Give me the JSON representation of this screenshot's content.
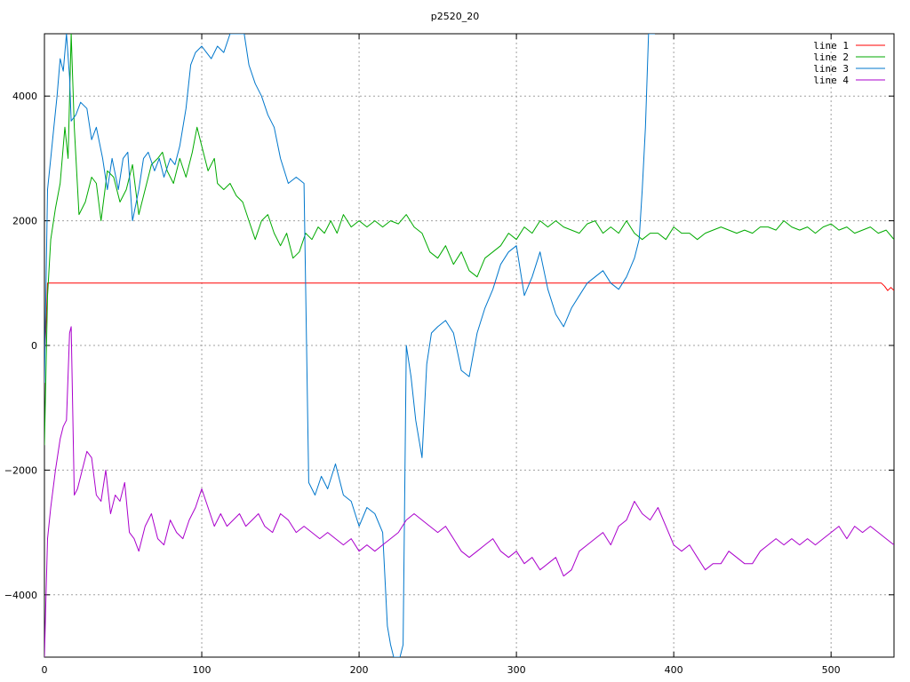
{
  "chart_data": {
    "type": "line",
    "title": "p2520_20",
    "xlabel": "",
    "ylabel": "",
    "xlim": [
      0,
      540
    ],
    "ylim": [
      -5000,
      5000
    ],
    "xticks": [
      0,
      100,
      200,
      300,
      400,
      500
    ],
    "yticks": [
      -4000,
      -2000,
      0,
      2000,
      4000
    ],
    "xtick_labels": [
      "0",
      "100",
      "200",
      "300",
      "400",
      "500"
    ],
    "ytick_labels": [
      "−4000",
      "−2000",
      "0",
      "2000",
      "4000"
    ],
    "grid": true,
    "legend_position": "top-right",
    "series": [
      {
        "name": "line 1",
        "color": "#ff0000",
        "x": [
          0,
          1,
          2,
          3,
          100,
          200,
          300,
          400,
          500,
          532,
          534,
          536,
          538,
          540
        ],
        "y": [
          -200,
          300,
          1000,
          1000,
          1000,
          1000,
          1000,
          1000,
          1000,
          1000,
          950,
          880,
          930,
          880
        ]
      },
      {
        "name": "line 2",
        "color": "#00aa00",
        "x": [
          0,
          2,
          4,
          7,
          10,
          13,
          15,
          17,
          19,
          22,
          26,
          30,
          33,
          36,
          40,
          44,
          48,
          52,
          56,
          60,
          64,
          68,
          72,
          75,
          78,
          82,
          86,
          90,
          94,
          97,
          100,
          104,
          108,
          110,
          114,
          118,
          122,
          126,
          130,
          134,
          138,
          142,
          146,
          150,
          154,
          158,
          162,
          166,
          170,
          174,
          178,
          182,
          186,
          190,
          195,
          200,
          205,
          210,
          215,
          220,
          225,
          230,
          235,
          240,
          245,
          250,
          255,
          260,
          265,
          270,
          275,
          280,
          285,
          290,
          295,
          300,
          305,
          310,
          315,
          320,
          325,
          330,
          335,
          340,
          345,
          350,
          355,
          360,
          365,
          370,
          375,
          380,
          385,
          390,
          395,
          400,
          405,
          410,
          415,
          420,
          425,
          430,
          435,
          440,
          445,
          450,
          455,
          460,
          465,
          470,
          475,
          480,
          485,
          490,
          495,
          500,
          505,
          510,
          515,
          520,
          525,
          530,
          535,
          540
        ],
        "y": [
          -1600,
          800,
          1700,
          2200,
          2600,
          3500,
          3000,
          5000,
          3500,
          2100,
          2300,
          2700,
          2600,
          2000,
          2800,
          2700,
          2300,
          2500,
          2900,
          2100,
          2500,
          2900,
          3000,
          3100,
          2800,
          2600,
          3000,
          2700,
          3100,
          3500,
          3200,
          2800,
          3000,
          2600,
          2500,
          2600,
          2400,
          2300,
          2000,
          1700,
          2000,
          2100,
          1800,
          1600,
          1800,
          1400,
          1500,
          1800,
          1700,
          1900,
          1800,
          2000,
          1800,
          2100,
          1900,
          2000,
          1900,
          2000,
          1900,
          2000,
          1950,
          2100,
          1900,
          1800,
          1500,
          1400,
          1600,
          1300,
          1500,
          1200,
          1100,
          1400,
          1500,
          1600,
          1800,
          1700,
          1900,
          1800,
          2000,
          1900,
          2000,
          1900,
          1850,
          1800,
          1950,
          2000,
          1800,
          1900,
          1800,
          2000,
          1800,
          1700,
          1800,
          1800,
          1700,
          1900,
          1800,
          1800,
          1700,
          1800,
          1850,
          1900,
          1850,
          1800,
          1850,
          1800,
          1900,
          1900,
          1850,
          2000,
          1900,
          1850,
          1900,
          1800,
          1900,
          1950,
          1850,
          1900,
          1800,
          1850,
          1900,
          1800,
          1850,
          1700
        ]
      },
      {
        "name": "line 3",
        "color": "#0077cc",
        "x": [
          0,
          2,
          4,
          6,
          8,
          10,
          12,
          14,
          16,
          17,
          20,
          23,
          27,
          30,
          33,
          37,
          40,
          43,
          47,
          50,
          53,
          56,
          60,
          63,
          66,
          70,
          73,
          76,
          80,
          83,
          86,
          90,
          93,
          96,
          100,
          103,
          106,
          110,
          114,
          118,
          122,
          126,
          127,
          130,
          134,
          138,
          142,
          146,
          150,
          155,
          160,
          165,
          168,
          172,
          176,
          180,
          185,
          190,
          195,
          200,
          205,
          210,
          215,
          218,
          220,
          222,
          224,
          226,
          228,
          230,
          233,
          236,
          240,
          243,
          246,
          250,
          255,
          260,
          265,
          270,
          275,
          280,
          285,
          290,
          295,
          300,
          305,
          310,
          315,
          320,
          325,
          330,
          335,
          340,
          345,
          350,
          355,
          360,
          365,
          370,
          375,
          378,
          380,
          382,
          384,
          386,
          388
        ],
        "y": [
          -600,
          2500,
          3000,
          3500,
          4000,
          4600,
          4400,
          5000,
          4300,
          3600,
          3700,
          3900,
          3800,
          3300,
          3500,
          3000,
          2500,
          3000,
          2500,
          3000,
          3100,
          2000,
          2500,
          3000,
          3100,
          2800,
          3000,
          2700,
          3000,
          2900,
          3200,
          3800,
          4500,
          4700,
          4800,
          4700,
          4600,
          4800,
          4700,
          5000,
          5000,
          5000,
          5000,
          4500,
          4200,
          4000,
          3700,
          3500,
          3000,
          2600,
          2700,
          2600,
          -2200,
          -2400,
          -2100,
          -2300,
          -1900,
          -2400,
          -2500,
          -2900,
          -2600,
          -2700,
          -3000,
          -4500,
          -4800,
          -5000,
          -5000,
          -5000,
          -4800,
          0,
          -500,
          -1200,
          -1800,
          -300,
          200,
          300,
          400,
          200,
          -400,
          -500,
          200,
          600,
          900,
          1300,
          1500,
          1600,
          800,
          1100,
          1500,
          900,
          500,
          300,
          600,
          800,
          1000,
          1100,
          1200,
          1000,
          900,
          1100,
          1400,
          1700,
          2500,
          3500,
          5000,
          5000,
          5000
        ]
      },
      {
        "name": "line 4",
        "color": "#aa00cc",
        "x": [
          0,
          1,
          2,
          4,
          7,
          10,
          12,
          14,
          16,
          17,
          19,
          21,
          24,
          27,
          30,
          33,
          36,
          39,
          42,
          45,
          48,
          51,
          54,
          57,
          60,
          64,
          68,
          72,
          76,
          80,
          84,
          88,
          92,
          96,
          100,
          104,
          108,
          112,
          116,
          120,
          124,
          128,
          132,
          136,
          140,
          145,
          150,
          155,
          160,
          165,
          170,
          175,
          180,
          185,
          190,
          195,
          200,
          205,
          210,
          215,
          220,
          225,
          230,
          235,
          240,
          245,
          250,
          255,
          260,
          265,
          270,
          275,
          280,
          285,
          290,
          295,
          300,
          305,
          310,
          315,
          320,
          325,
          330,
          335,
          340,
          345,
          350,
          355,
          360,
          365,
          370,
          375,
          380,
          385,
          390,
          395,
          400,
          405,
          410,
          415,
          420,
          425,
          430,
          435,
          440,
          445,
          450,
          455,
          460,
          465,
          470,
          475,
          480,
          485,
          490,
          495,
          500,
          505,
          510,
          515,
          520,
          525,
          530,
          535,
          540
        ],
        "y": [
          -5000,
          -4000,
          -3100,
          -2600,
          -2000,
          -1500,
          -1300,
          -1200,
          200,
          300,
          -2400,
          -2300,
          -2000,
          -1700,
          -1800,
          -2400,
          -2500,
          -2000,
          -2700,
          -2400,
          -2500,
          -2200,
          -3000,
          -3100,
          -3300,
          -2900,
          -2700,
          -3100,
          -3200,
          -2800,
          -3000,
          -3100,
          -2800,
          -2600,
          -2300,
          -2600,
          -2900,
          -2700,
          -2900,
          -2800,
          -2700,
          -2900,
          -2800,
          -2700,
          -2900,
          -3000,
          -2700,
          -2800,
          -3000,
          -2900,
          -3000,
          -3100,
          -3000,
          -3100,
          -3200,
          -3100,
          -3300,
          -3200,
          -3300,
          -3200,
          -3100,
          -3000,
          -2800,
          -2700,
          -2800,
          -2900,
          -3000,
          -2900,
          -3100,
          -3300,
          -3400,
          -3300,
          -3200,
          -3100,
          -3300,
          -3400,
          -3300,
          -3500,
          -3400,
          -3600,
          -3500,
          -3400,
          -3700,
          -3600,
          -3300,
          -3200,
          -3100,
          -3000,
          -3200,
          -2900,
          -2800,
          -2500,
          -2700,
          -2800,
          -2600,
          -2900,
          -3200,
          -3300,
          -3200,
          -3400,
          -3600,
          -3500,
          -3500,
          -3300,
          -3400,
          -3500,
          -3500,
          -3300,
          -3200,
          -3100,
          -3200,
          -3100,
          -3200,
          -3100,
          -3200,
          -3100,
          -3000,
          -2900,
          -3100,
          -2900,
          -3000,
          -2900,
          -3000,
          -3100,
          -3200
        ]
      }
    ]
  }
}
